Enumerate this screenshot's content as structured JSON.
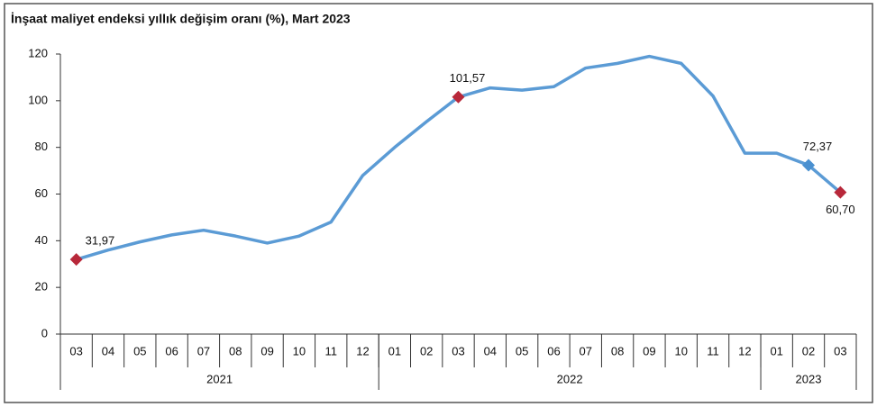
{
  "chart_data": {
    "type": "line",
    "title": "İnşaat maliyet endeksi yıllık değişim oranı (%), Mart 2023",
    "categories": [
      "03",
      "04",
      "05",
      "06",
      "07",
      "08",
      "09",
      "10",
      "11",
      "12",
      "01",
      "02",
      "03",
      "04",
      "05",
      "06",
      "07",
      "08",
      "09",
      "10",
      "11",
      "12",
      "01",
      "02",
      "03"
    ],
    "groups": [
      {
        "name": "2021",
        "start": 0,
        "end": 9
      },
      {
        "name": "2022",
        "start": 10,
        "end": 21
      },
      {
        "name": "2023",
        "start": 22,
        "end": 24
      }
    ],
    "series": [
      {
        "name": "İnşaat maliyet endeksi yıllık değişim oranı",
        "color": "#5b9bd5",
        "values": [
          31.97,
          36,
          39.5,
          42.5,
          44.5,
          42,
          39,
          42,
          48,
          68,
          80,
          91,
          101.57,
          105.5,
          104.5,
          106,
          114,
          116,
          119,
          116,
          102,
          77.5,
          77.5,
          72.37,
          60.7
        ],
        "value_labels": [
          "31,97",
          null,
          null,
          null,
          null,
          null,
          null,
          null,
          null,
          null,
          null,
          null,
          "101,57",
          null,
          null,
          null,
          null,
          null,
          null,
          null,
          null,
          null,
          null,
          "72,37",
          "60,70"
        ],
        "marker_colors": [
          "#b8283a",
          null,
          null,
          null,
          null,
          null,
          null,
          null,
          null,
          null,
          null,
          null,
          "#b8283a",
          null,
          null,
          null,
          null,
          null,
          null,
          null,
          null,
          null,
          null,
          "#4a90d0",
          "#b8283a"
        ]
      }
    ],
    "ylim": [
      0,
      120
    ],
    "yticks": [
      0,
      20,
      40,
      60,
      80,
      100,
      120
    ],
    "grid": false
  }
}
